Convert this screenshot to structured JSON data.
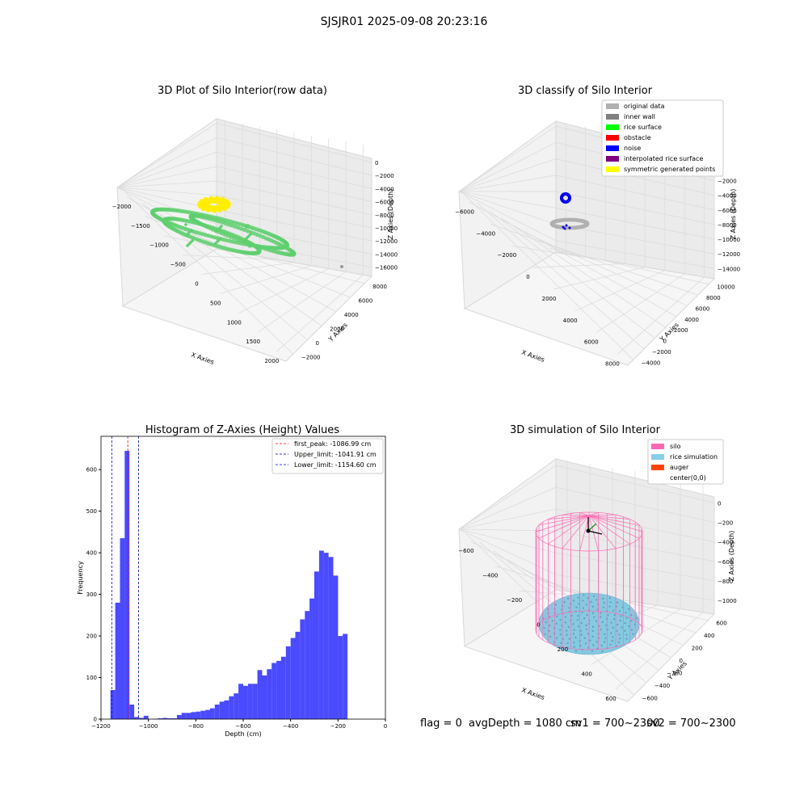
{
  "title": "SJSJR01 2025-09-08 20:23:16",
  "status": {
    "flag": "flag = 0",
    "avg_depth": "avgDepth = 1080 cm",
    "sv1": "sv1 = 700~2300",
    "sv2": "sv2 = 700~2300"
  },
  "colors": {
    "raw_points": "#5fcf6f",
    "yellow": "#ffee00",
    "gray": "#b0b0b0",
    "blue": "#0000ee",
    "hist_bar": "#4a4aff",
    "silo": "#ff69b4",
    "rice": "#86c9e0",
    "auger": "#ff4500"
  },
  "chart_data": [
    {
      "type": "scatter",
      "title": "3D Plot of Silo Interior(row data)",
      "xlabel": "X Axies",
      "ylabel": "Y Axies",
      "zlabel": "Z Axies (Depth)",
      "x_ticks": [
        "−2000",
        "−1500",
        "−1000",
        "−500",
        "0",
        "500",
        "1000",
        "1500",
        "2000"
      ],
      "y_ticks": [
        "−2000",
        "0",
        "2000",
        "4000",
        "6000",
        "8000"
      ],
      "z_ticks": [
        "0",
        "−2000",
        "−4000",
        "−6000",
        "−8000",
        "−10000",
        "−12000",
        "−14000",
        "−16000"
      ],
      "xlim": [
        -2000,
        2000
      ],
      "ylim": [
        -2000,
        8000
      ],
      "zlim": [
        -16000,
        0
      ]
    },
    {
      "type": "scatter",
      "title": "3D classify of Silo Interior",
      "xlabel": "X Axies",
      "ylabel": "Y Axies",
      "zlabel": "Z Axies (Depth)",
      "x_ticks": [
        "−6000",
        "−4000",
        "−2000",
        "0",
        "2000",
        "4000",
        "6000",
        "8000"
      ],
      "y_ticks": [
        "−4000",
        "−2000",
        "0",
        "2000",
        "4000",
        "6000",
        "8000",
        "10000"
      ],
      "z_ticks": [
        "0",
        "−2000",
        "−4000",
        "−6000",
        "−8000",
        "−10000",
        "−12000",
        "−14000"
      ],
      "legend": [
        {
          "label": "original data",
          "color": "#b0b0b0"
        },
        {
          "label": "inner wall",
          "color": "#808080"
        },
        {
          "label": "rice surface",
          "color": "#00ff00"
        },
        {
          "label": "obstacle",
          "color": "#ff0000"
        },
        {
          "label": "noise",
          "color": "#0000ff"
        },
        {
          "label": "interpolated rice surface",
          "color": "#800080"
        },
        {
          "label": "symmetric generated points",
          "color": "#ffff00"
        }
      ],
      "legend_position": "top-right"
    },
    {
      "type": "bar",
      "title": "Histogram of Z-Axies (Height) Values",
      "xlabel": "Depth (cm)",
      "ylabel": "Frequency",
      "xlim": [
        -1200,
        0
      ],
      "ylim": [
        0,
        680
      ],
      "x_ticks": [
        -1200,
        -1000,
        -800,
        -600,
        -400,
        -200,
        0
      ],
      "y_ticks": [
        0,
        100,
        200,
        300,
        400,
        500,
        600
      ],
      "bin_width": 20,
      "bins_start": [
        -1160,
        -1140,
        -1120,
        -1100,
        -1080,
        -1060,
        -1040,
        -1020,
        -1000,
        -980,
        -960,
        -940,
        -920,
        -900,
        -880,
        -860,
        -840,
        -820,
        -800,
        -780,
        -760,
        -740,
        -720,
        -700,
        -680,
        -660,
        -640,
        -620,
        -600,
        -580,
        -560,
        -540,
        -520,
        -500,
        -480,
        -460,
        -440,
        -420,
        -400,
        -380,
        -360,
        -340,
        -320,
        -300,
        -280,
        -260,
        -240,
        -220,
        -200,
        -180,
        -160,
        -140,
        -120,
        -100,
        -80,
        -60,
        -40
      ],
      "values": [
        70,
        280,
        435,
        645,
        35,
        5,
        3,
        8,
        0,
        1,
        2,
        3,
        2,
        2,
        10,
        15,
        15,
        17,
        18,
        20,
        22,
        26,
        35,
        42,
        45,
        55,
        62,
        85,
        80,
        85,
        85,
        118,
        105,
        120,
        135,
        140,
        150,
        175,
        195,
        210,
        240,
        260,
        290,
        355,
        405,
        400,
        390,
        345,
        200,
        205,
        0,
        0,
        0,
        0,
        0,
        0,
        0
      ],
      "values_note": "",
      "vlines": [
        {
          "label": "first_peak: -1086.99 cm",
          "x": -1086.99,
          "color": "#ff0000"
        },
        {
          "label": "Upper_limit: -1041.91 cm",
          "x": -1041.91,
          "color": "#0000aa"
        },
        {
          "label": "Lower_limit: -1154.60 cm",
          "x": -1154.6,
          "color": "#0000ff"
        }
      ],
      "legend_position": "top-right"
    },
    {
      "type": "scatter",
      "title": "3D simulation of Silo Interior",
      "xlabel": "X Axies",
      "ylabel": "Y Axies",
      "zlabel": "Z Axies (Depth)",
      "x_ticks": [
        "−600",
        "−400",
        "−200",
        "0",
        "200",
        "400",
        "600"
      ],
      "y_ticks": [
        "−600",
        "−400",
        "−200",
        "0",
        "200",
        "400",
        "600"
      ],
      "z_ticks": [
        "0",
        "−200",
        "−400",
        "−600",
        "−800",
        "−1000"
      ],
      "legend": [
        {
          "label": "silo",
          "color": "#ff69b4"
        },
        {
          "label": "rice simulation",
          "color": "#87ceeb"
        },
        {
          "label": "auger",
          "color": "#ff4500"
        },
        {
          "label": "center(0,0)",
          "color": ""
        }
      ],
      "legend_position": "top-right"
    }
  ]
}
